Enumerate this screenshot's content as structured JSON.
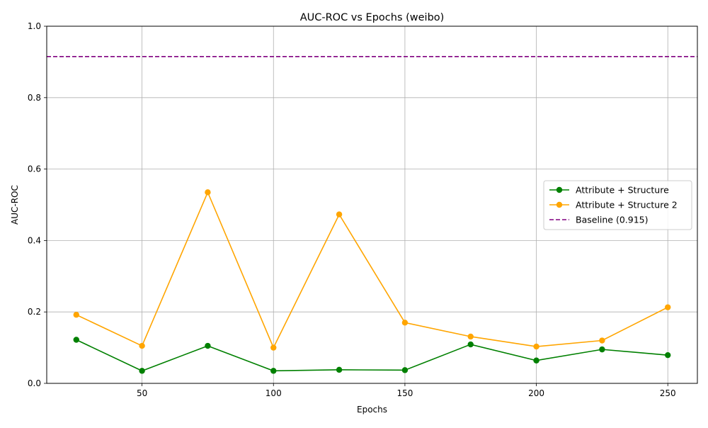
{
  "chart_data": {
    "type": "line",
    "title": "AUC-ROC vs Epochs (weibo)",
    "xlabel": "Epochs",
    "ylabel": "AUC-ROC",
    "x": [
      25,
      50,
      75,
      100,
      125,
      150,
      175,
      200,
      225,
      250
    ],
    "xlim": [
      13.75,
      261.25
    ],
    "ylim": [
      0.0,
      1.0
    ],
    "xticks": [
      50,
      100,
      150,
      200,
      250
    ],
    "yticks": [
      0.0,
      0.2,
      0.4,
      0.6,
      0.8,
      1.0
    ],
    "grid": true,
    "legend_position": "center-right",
    "series": [
      {
        "name": "Attribute + Structure",
        "color": "#008000",
        "marker": "circle",
        "linestyle": "solid",
        "values": [
          0.122,
          0.035,
          0.105,
          0.035,
          0.038,
          0.037,
          0.109,
          0.064,
          0.095,
          0.079
        ]
      },
      {
        "name": "Attribute + Structure 2",
        "color": "#ffa500",
        "marker": "circle",
        "linestyle": "solid",
        "values": [
          0.192,
          0.105,
          0.535,
          0.1,
          0.473,
          0.17,
          0.131,
          0.103,
          0.12,
          0.213
        ]
      }
    ],
    "reference_lines": [
      {
        "name": "Baseline (0.915)",
        "value": 0.915,
        "color": "#800080",
        "linestyle": "dashed"
      }
    ]
  }
}
